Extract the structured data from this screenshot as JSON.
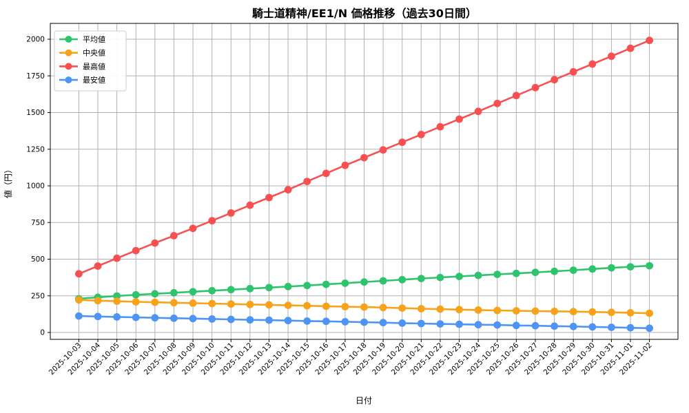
{
  "title": "騎士道精神/EE1/N 価格推移（過去30日間）",
  "chart_data": {
    "type": "line",
    "title": "騎士道精神/EE1/N 価格推移（過去30日間）",
    "xlabel": "日付",
    "ylabel": "値（円）",
    "x": [
      "2025-10-03",
      "2025-10-04",
      "2025-10-05",
      "2025-10-06",
      "2025-10-07",
      "2025-10-08",
      "2025-10-09",
      "2025-10-10",
      "2025-10-11",
      "2025-10-12",
      "2025-10-13",
      "2025-10-14",
      "2025-10-15",
      "2025-10-16",
      "2025-10-17",
      "2025-10-18",
      "2025-10-19",
      "2025-10-20",
      "2025-10-21",
      "2025-10-22",
      "2025-10-23",
      "2025-10-24",
      "2025-10-25",
      "2025-10-26",
      "2025-10-27",
      "2025-10-28",
      "2025-10-29",
      "2025-10-30",
      "2025-10-31",
      "2025-11-01",
      "2025-11-02"
    ],
    "series": [
      {
        "key": "average",
        "name": "平均値",
        "color": "#2ec46e",
        "values": [
          230,
          240,
          249,
          257,
          264,
          271,
          278,
          285,
          292,
          299,
          306,
          313,
          320,
          328,
          336,
          344,
          352,
          360,
          368,
          375,
          382,
          389,
          396,
          403,
          410,
          417,
          425,
          433,
          441,
          448,
          455
        ]
      },
      {
        "key": "median",
        "name": "中央値",
        "color": "#f8a21a",
        "values": [
          222,
          217,
          213,
          209,
          206,
          203,
          200,
          197,
          194,
          191,
          188,
          185,
          182,
          179,
          176,
          173,
          170,
          166,
          162,
          159,
          156,
          153,
          150,
          148,
          146,
          144,
          142,
          140,
          137,
          134,
          131
        ]
      },
      {
        "key": "highest",
        "name": "最高値",
        "color": "#f85050",
        "values": [
          400,
          453,
          506,
          558,
          610,
          660,
          710,
          762,
          815,
          868,
          920,
          973,
          1030,
          1085,
          1140,
          1192,
          1245,
          1297,
          1350,
          1403,
          1455,
          1508,
          1562,
          1616,
          1670,
          1724,
          1778,
          1831,
          1884,
          1938,
          1992
        ]
      },
      {
        "key": "lowest",
        "name": "最安値",
        "color": "#4d94f5",
        "values": [
          112,
          109,
          106,
          103,
          100,
          97,
          95,
          92,
          89,
          86,
          84,
          81,
          78,
          76,
          73,
          70,
          67,
          64,
          61,
          58,
          56,
          53,
          51,
          48,
          46,
          43,
          41,
          38,
          35,
          32,
          29
        ]
      }
    ],
    "yticks": [
      0,
      250,
      500,
      750,
      1000,
      1250,
      1500,
      1750,
      2000
    ],
    "ylim": [
      -47,
      2108
    ],
    "grid": true,
    "grid_color": "#b0b0b0",
    "legend_position": "upper left",
    "background": "#ffffff"
  }
}
